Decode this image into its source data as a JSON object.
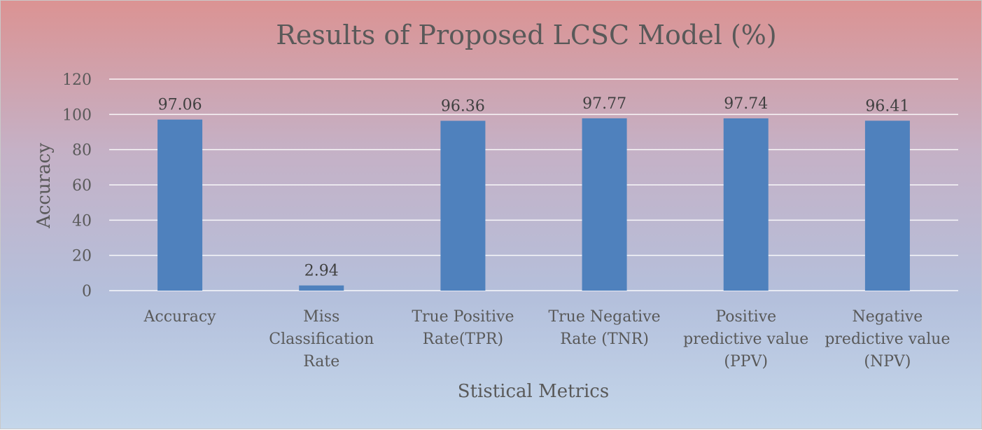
{
  "chart_data": {
    "type": "bar",
    "title": "Results of Proposed LCSC Model (%)",
    "xlabel": "Stistical Metrics",
    "ylabel": "Accuracy",
    "ylim": [
      0,
      120
    ],
    "yticks": [
      0,
      20,
      40,
      60,
      80,
      100,
      120
    ],
    "categories": [
      [
        "Accuracy"
      ],
      [
        "Miss",
        "Classification",
        "Rate"
      ],
      [
        "True Positive",
        "Rate(TPR)"
      ],
      [
        "True Negative",
        "Rate (TNR)"
      ],
      [
        "Positive",
        "predictive value",
        "(PPV)"
      ],
      [
        "Negative",
        "predictive value",
        "(NPV)"
      ]
    ],
    "values": [
      97.06,
      2.94,
      96.36,
      97.77,
      97.74,
      96.41
    ],
    "data_labels": [
      "97.06",
      "2.94",
      "96.36",
      "97.77",
      "97.74",
      "96.41"
    ],
    "series_color": "#4f81bd",
    "grid": true,
    "legend": "none"
  }
}
